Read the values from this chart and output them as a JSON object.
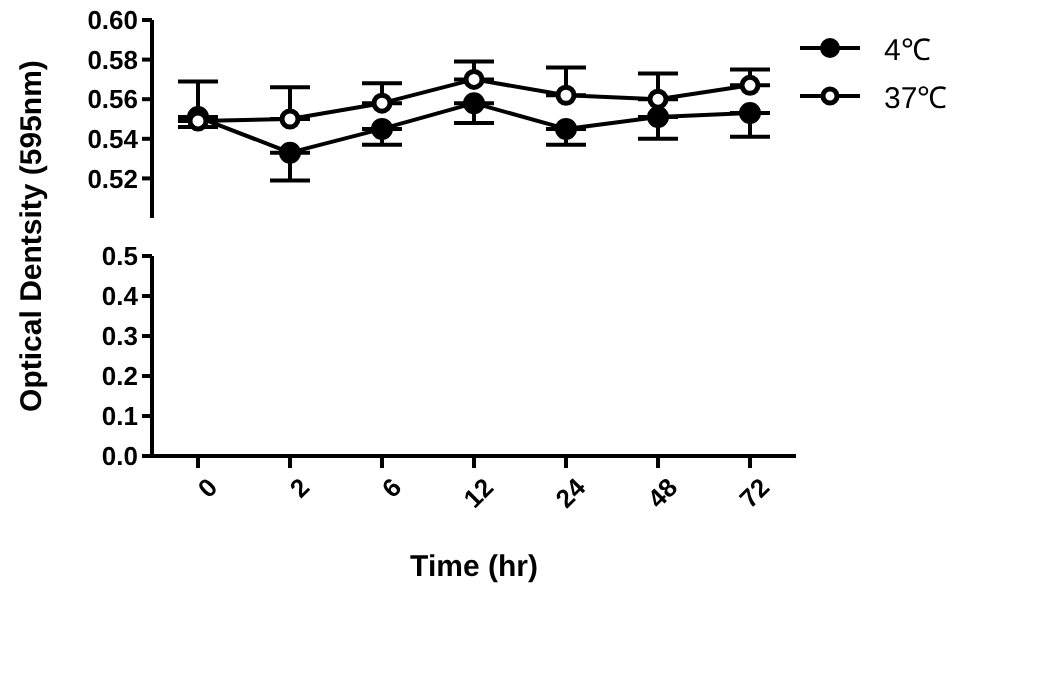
{
  "chart_data": [
    {
      "type": "line",
      "ylabel": "Optical Dentsity (595nm)",
      "categories": [
        "0",
        "2",
        "6",
        "12",
        "24",
        "48",
        "72"
      ],
      "ylim": [
        0.5,
        0.6
      ],
      "yticks": [
        0.52,
        0.54,
        0.56,
        0.58,
        {
          "value": 0.6,
          "label": "0.60"
        }
      ],
      "tick_labels": "y",
      "legend": "top right",
      "marker": "circle",
      "line_style": "solid",
      "series": [
        {
          "name": "4℃",
          "color": "#000000",
          "values": [
            0.551,
            0.533,
            0.545,
            0.558,
            0.545,
            0.551,
            0.553
          ],
          "errors": [
            [
              0.546,
              0.551
            ],
            [
              0.519,
              0.533
            ],
            [
              0.537,
              0.545
            ],
            [
              0.548,
              0.558
            ],
            [
              0.537,
              0.545
            ],
            [
              0.54,
              0.551
            ],
            [
              0.541,
              0.553
            ]
          ]
        },
        {
          "name": "37℃",
          "color": "#000000",
          "values": [
            0.549,
            0.55,
            0.558,
            0.57,
            0.562,
            0.56,
            0.567
          ],
          "errors": [
            [
              0.549,
              0.569
            ],
            [
              0.55,
              0.566
            ],
            [
              0.558,
              0.568
            ],
            [
              0.57,
              0.579
            ],
            [
              0.562,
              0.576
            ],
            [
              0.56,
              0.573
            ],
            [
              0.567,
              0.575
            ]
          ]
        }
      ]
    },
    {
      "type": "line",
      "xlabel": "Time (hr)",
      "categories": [
        "0",
        "2",
        "6",
        "12",
        "24",
        "48",
        "72"
      ],
      "ylim": [
        0,
        0.5
      ],
      "yticks": [
        {
          "value": 0,
          "label": "0.0"
        },
        0.1,
        0.2,
        0.3,
        0.4,
        0.5
      ]
    }
  ]
}
